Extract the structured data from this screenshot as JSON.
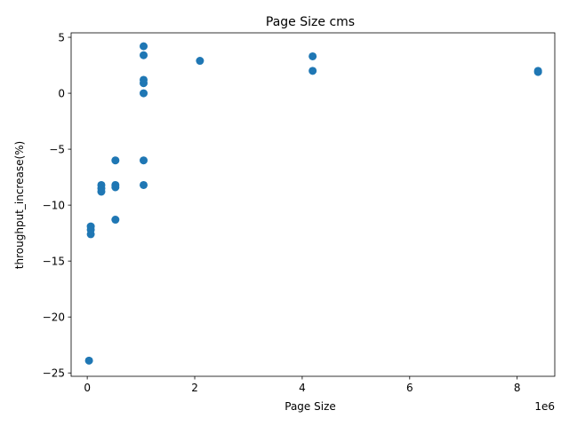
{
  "chart_data": {
    "type": "scatter",
    "title": "Page Size cms",
    "xlabel": "Page Size",
    "ylabel": "throughput_increase(%)",
    "x_offset_label": "1e6",
    "x_scale": 1000000,
    "xlim": [
      -300000,
      8700000
    ],
    "ylim": [
      -25.3,
      5.4
    ],
    "x_ticks": [
      0,
      2000000,
      4000000,
      6000000,
      8000000
    ],
    "x_tick_labels": [
      "0",
      "2",
      "4",
      "6",
      "8"
    ],
    "y_ticks": [
      5,
      0,
      -5,
      -10,
      -15,
      -20,
      -25
    ],
    "y_tick_labels": [
      "5",
      "0",
      "−5",
      "−10",
      "−15",
      "−20",
      "−25"
    ],
    "grid": false,
    "marker_color": "#1f77b4",
    "points": [
      {
        "x": 32768,
        "y": -23.9
      },
      {
        "x": 65536,
        "y": -11.9
      },
      {
        "x": 65536,
        "y": -12.2
      },
      {
        "x": 65536,
        "y": -12.6
      },
      {
        "x": 262144,
        "y": -8.2
      },
      {
        "x": 262144,
        "y": -8.5
      },
      {
        "x": 262144,
        "y": -8.8
      },
      {
        "x": 524288,
        "y": -6.0
      },
      {
        "x": 524288,
        "y": -8.2
      },
      {
        "x": 524288,
        "y": -8.4
      },
      {
        "x": 524288,
        "y": -11.3
      },
      {
        "x": 1048576,
        "y": 4.2
      },
      {
        "x": 1048576,
        "y": 3.4
      },
      {
        "x": 1048576,
        "y": 1.2
      },
      {
        "x": 1048576,
        "y": 0.9
      },
      {
        "x": 1048576,
        "y": 0.0
      },
      {
        "x": 1048576,
        "y": -6.0
      },
      {
        "x": 1048576,
        "y": -8.2
      },
      {
        "x": 2097152,
        "y": 2.9
      },
      {
        "x": 4194304,
        "y": 3.3
      },
      {
        "x": 4194304,
        "y": 2.0
      },
      {
        "x": 8388608,
        "y": 2.0
      },
      {
        "x": 8388608,
        "y": 1.9
      }
    ]
  }
}
